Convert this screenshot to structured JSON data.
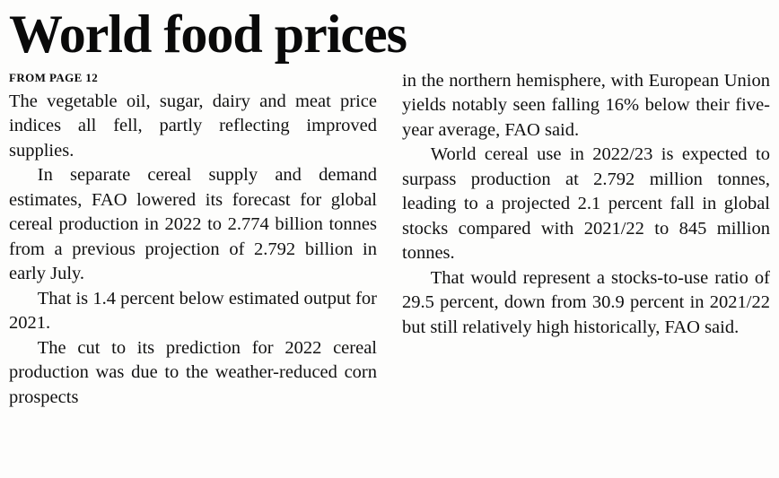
{
  "article": {
    "headline": "World food prices",
    "kicker": "FROM PAGE 12",
    "left": {
      "paragraphs": [
        "The vegetable oil, sugar, dairy and meat price indices all fell, partly reflecting improved supplies.",
        "In separate cereal supply and demand estimates, FAO lowered its forecast for global cereal production in 2022 to 2.774 billion tonnes from a previous projection of 2.792 billion in early July.",
        "That is 1.4 percent below estimated output for 2021.",
        "The cut to its prediction for 2022 cereal production was due to the weather-reduced corn prospects"
      ]
    },
    "right": {
      "paragraphs": [
        "in the northern hemisphere, with European Union yields notably seen falling 16% below their five-year average, FAO said.",
        "World cereal use in 2022/23 is expected to surpass production at 2.792 million tonnes, leading to a projected 2.1 percent fall in global stocks compared with 2021/22 to 845 million tonnes.",
        "That would represent a stocks-to-use ratio of 29.5 percent, down from 30.9 percent in 2021/22 but still relatively high historically, FAO said."
      ]
    },
    "colors": {
      "background": "#fdfdfc",
      "text": "#0e0e0e"
    }
  }
}
